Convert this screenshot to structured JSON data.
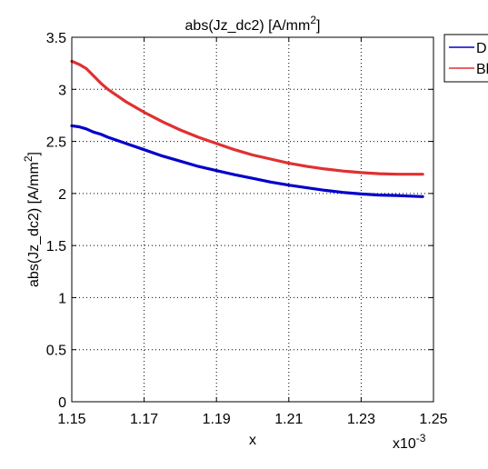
{
  "chart_data": {
    "type": "line",
    "title": "abs(Jz_dc2) [A/mm",
    "title_sup": "2",
    "title_suffix": "]",
    "xlabel": "x",
    "ylabel": "abs(Jz_dc2) [A/mm",
    "ylabel_sup": "2",
    "ylabel_suffix": "]",
    "xlim": [
      0.00115,
      0.00125
    ],
    "ylim": [
      0,
      3.5
    ],
    "x_multiplier": "x10",
    "x_multiplier_exp": "-3",
    "x_ticks": [
      0.00115,
      0.00117,
      0.00119,
      0.00121,
      0.00123,
      0.00125
    ],
    "x_tick_labels": [
      "1.15",
      "1.17",
      "1.19",
      "1.21",
      "1.23",
      "1.25"
    ],
    "y_ticks": [
      0,
      0.5,
      1,
      1.5,
      2,
      2.5,
      3,
      3.5
    ],
    "y_tick_labels": [
      "0",
      "0.5",
      "1",
      "1.5",
      "2",
      "2.5",
      "3",
      "3.5"
    ],
    "grid": true,
    "legend_position": "top-right, outside plot, clipped",
    "series": [
      {
        "name": "D",
        "color": "#0000cc",
        "x": [
          0.00115,
          0.001152,
          0.001154,
          0.001156,
          0.001158,
          0.00116,
          0.001165,
          0.00117,
          0.001175,
          0.00118,
          0.001185,
          0.00119,
          0.001195,
          0.0012,
          0.001205,
          0.00121,
          0.001215,
          0.00122,
          0.001225,
          0.00123,
          0.001235,
          0.00124,
          0.001243,
          0.001247
        ],
        "y": [
          2.65,
          2.64,
          2.62,
          2.59,
          2.57,
          2.54,
          2.48,
          2.42,
          2.36,
          2.31,
          2.26,
          2.22,
          2.18,
          2.145,
          2.11,
          2.08,
          2.055,
          2.03,
          2.01,
          1.995,
          1.985,
          1.98,
          1.975,
          1.97
        ]
      },
      {
        "name": "Bl",
        "color": "#e03030",
        "x": [
          0.00115,
          0.001152,
          0.001154,
          0.001156,
          0.001158,
          0.00116,
          0.001165,
          0.00117,
          0.001175,
          0.00118,
          0.001185,
          0.00119,
          0.001195,
          0.0012,
          0.001205,
          0.00121,
          0.001215,
          0.00122,
          0.001225,
          0.00123,
          0.001235,
          0.00124,
          0.001243,
          0.001247
        ],
        "y": [
          3.27,
          3.24,
          3.2,
          3.13,
          3.06,
          3.0,
          2.88,
          2.78,
          2.69,
          2.61,
          2.54,
          2.48,
          2.42,
          2.37,
          2.33,
          2.29,
          2.26,
          2.235,
          2.215,
          2.2,
          2.19,
          2.185,
          2.185,
          2.185
        ]
      }
    ]
  }
}
